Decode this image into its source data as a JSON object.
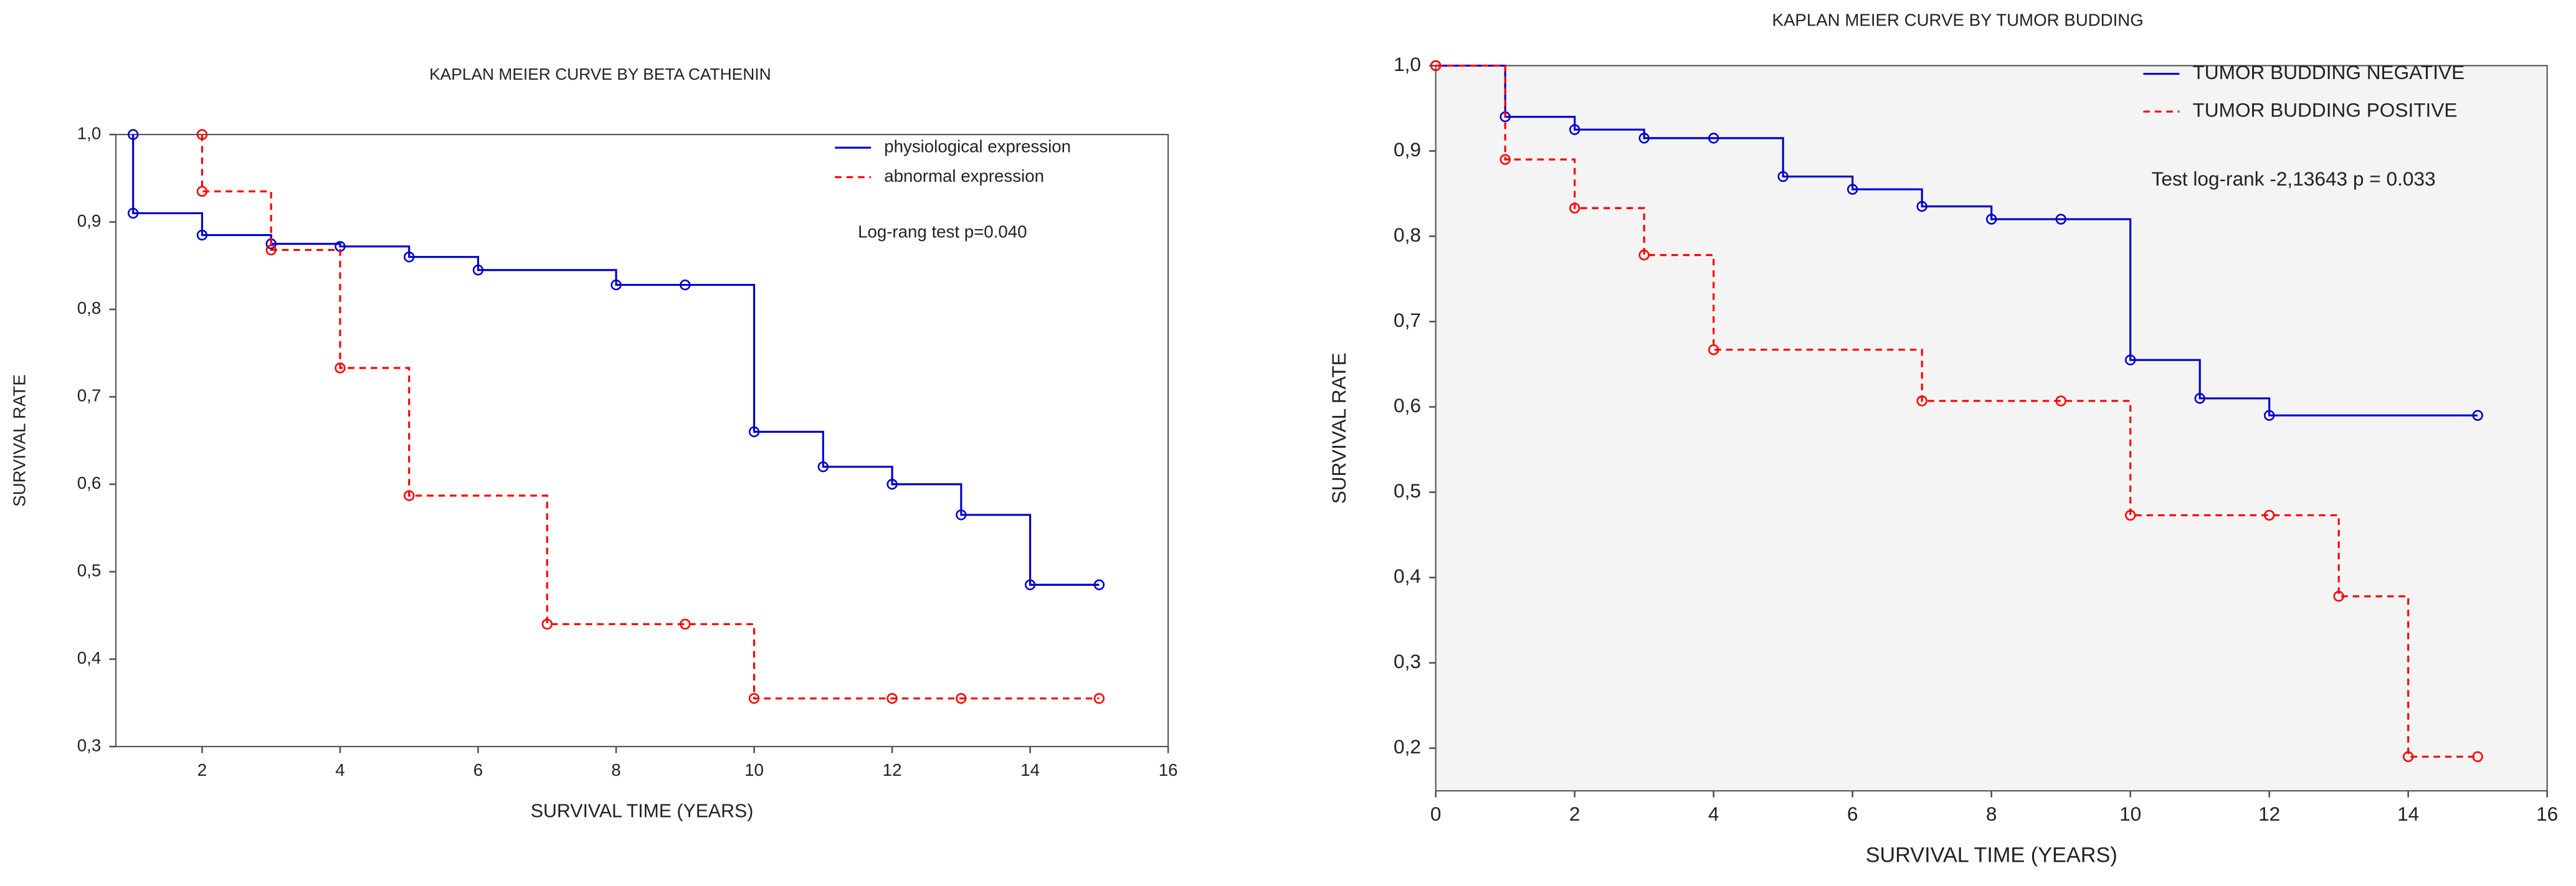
{
  "chart_data": [
    {
      "type": "step",
      "title": "KAPLAN MEIER CURVE BY BETA CATHENIN",
      "x_label": "SURVIVAL TIME (YEARS)",
      "y_label": "SURVIVAL RATE",
      "annotation": "Log-rang test p=0.040",
      "background": "#ffffff",
      "legend": "upper right",
      "xlim": [
        0.75,
        16
      ],
      "ylim": [
        0.3,
        1.0
      ],
      "xticks": [
        2,
        4,
        6,
        8,
        10,
        12,
        14,
        16
      ],
      "yticks": [
        {
          "value": 1.0,
          "label": "1,0"
        },
        {
          "value": 0.9,
          "label": "0,9"
        },
        {
          "value": 0.8,
          "label": "0,8"
        },
        {
          "value": 0.7,
          "label": "0,7"
        },
        {
          "value": 0.6,
          "label": "0,6"
        },
        {
          "value": 0.5,
          "label": "0,5"
        },
        {
          "value": 0.4,
          "label": "0,4"
        },
        {
          "value": 0.3,
          "label": "0,3"
        }
      ],
      "series": [
        {
          "name": "physiological  expression",
          "color": "#0000cc",
          "line_style": "solid",
          "x": [
            1,
            1,
            2,
            3,
            4,
            5,
            6,
            8,
            9,
            10,
            11,
            12,
            13,
            14,
            15
          ],
          "values": [
            1.0,
            0.91,
            0.885,
            0.875,
            0.872,
            0.86,
            0.845,
            0.828,
            0.828,
            0.66,
            0.62,
            0.6,
            0.565,
            0.485,
            0.485
          ]
        },
        {
          "name": "abnormal expression",
          "color": "#ff0000",
          "line_style": "dashed",
          "x": [
            2,
            2,
            3,
            4,
            5,
            7,
            9,
            10,
            12,
            13,
            15
          ],
          "values": [
            1.0,
            0.935,
            0.868,
            0.733,
            0.587,
            0.44,
            0.44,
            0.355,
            0.355,
            0.355,
            0.355
          ]
        }
      ]
    },
    {
      "type": "step",
      "title": "KAPLAN MEIER CURVE BY TUMOR BUDDING",
      "x_label": "SURVIVAL TIME (YEARS)",
      "y_label": "SURVIVAL RATE",
      "annotation": "Test log-rank -2,13643 p = 0.033",
      "background": "#f4f4f4",
      "legend": "upper right",
      "xlim": [
        0,
        16
      ],
      "ylim": [
        0.15,
        1.0
      ],
      "xticks": [
        0,
        2,
        4,
        6,
        8,
        10,
        12,
        14,
        16
      ],
      "yticks": [
        {
          "value": 1.0,
          "label": "1,0"
        },
        {
          "value": 0.9,
          "label": "0,9"
        },
        {
          "value": 0.8,
          "label": "0,8"
        },
        {
          "value": 0.7,
          "label": "0,7"
        },
        {
          "value": 0.6,
          "label": "0,6"
        },
        {
          "value": 0.5,
          "label": "0,5"
        },
        {
          "value": 0.4,
          "label": "0,4"
        },
        {
          "value": 0.3,
          "label": "0,3"
        },
        {
          "value": 0.2,
          "label": "0,2"
        }
      ],
      "series": [
        {
          "name": "TUMOR BUDDING NEGATIVE",
          "color": "#0000cc",
          "line_style": "solid",
          "x": [
            0,
            1,
            2,
            3,
            4,
            5,
            6,
            7,
            8,
            9,
            10,
            11,
            12,
            15
          ],
          "values": [
            1.0,
            0.94,
            0.925,
            0.915,
            0.915,
            0.87,
            0.855,
            0.835,
            0.82,
            0.82,
            0.655,
            0.61,
            0.59,
            0.59
          ]
        },
        {
          "name": "TUMOR BUDDING POSITIVE",
          "color": "#ff0000",
          "line_style": "dashed",
          "x": [
            0,
            1,
            2,
            3,
            4,
            7,
            9,
            10,
            12,
            13,
            14,
            15
          ],
          "values": [
            1.0,
            0.89,
            0.833,
            0.778,
            0.667,
            0.607,
            0.607,
            0.473,
            0.473,
            0.378,
            0.19,
            0.19
          ]
        }
      ]
    }
  ]
}
